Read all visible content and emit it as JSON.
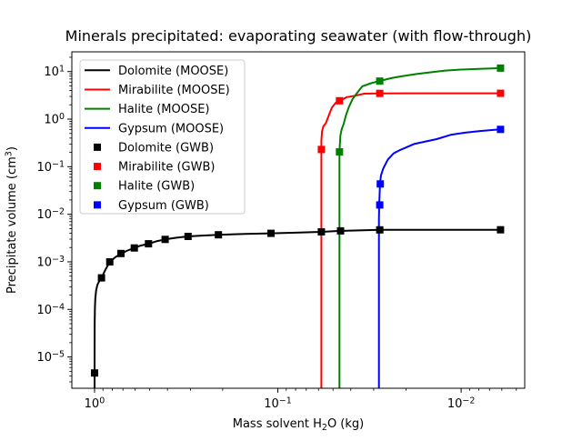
{
  "chart_data": {
    "type": "line",
    "title": "Minerals precipitated: evaporating seawater (with flow-through)",
    "legend_position": "upper left",
    "x_axis": {
      "label_pre": "Mass solvent H",
      "label_sub": "2",
      "label_post": "O (kg)",
      "scale": "log",
      "inverted": true,
      "lim": [
        1.33,
        0.0045
      ],
      "major_ticks": [
        {
          "v": 1,
          "base": "10",
          "exp": "0"
        },
        {
          "v": 0.1,
          "base": "10",
          "exp": "−1"
        },
        {
          "v": 0.01,
          "base": "10",
          "exp": "−2"
        }
      ],
      "minor_decades": [
        0,
        -1,
        -2,
        -3
      ]
    },
    "y_axis": {
      "label_pre": "Precipitate volume (cm",
      "label_sup": "3",
      "label_post": ")",
      "scale": "log",
      "lim": [
        2.2e-06,
        26
      ],
      "major_ticks": [
        {
          "v": 10,
          "base": "10",
          "exp": "1"
        },
        {
          "v": 1,
          "base": "10",
          "exp": "0"
        },
        {
          "v": 0.1,
          "base": "10",
          "exp": "−1"
        },
        {
          "v": 0.01,
          "base": "10",
          "exp": "−2"
        },
        {
          "v": 0.001,
          "base": "10",
          "exp": "−3"
        },
        {
          "v": 0.0001,
          "base": "10",
          "exp": "−4"
        },
        {
          "v": 1e-05,
          "base": "10",
          "exp": "−5"
        }
      ],
      "minor_decades": [
        1,
        0,
        -1,
        -2,
        -3,
        -4,
        -5,
        -6
      ]
    },
    "series": [
      {
        "name": "Dolomite (MOOSE)",
        "type": "line",
        "color": "#000000",
        "points": [
          [
            1.0,
            2.2e-06
          ],
          [
            1.0,
            1e-05
          ],
          [
            0.998,
            5e-05
          ],
          [
            0.995,
            0.00011
          ],
          [
            0.99,
            0.00017
          ],
          [
            0.98,
            0.00025
          ],
          [
            0.965,
            0.00033
          ],
          [
            0.94,
            0.0004
          ],
          [
            0.916,
            0.00046
          ],
          [
            0.87,
            0.0007
          ],
          [
            0.826,
            0.001
          ],
          [
            0.77,
            0.00125
          ],
          [
            0.718,
            0.0015
          ],
          [
            0.66,
            0.00173
          ],
          [
            0.607,
            0.00196
          ],
          [
            0.56,
            0.0022
          ],
          [
            0.508,
            0.0024
          ],
          [
            0.46,
            0.0027
          ],
          [
            0.412,
            0.00296
          ],
          [
            0.36,
            0.0032
          ],
          [
            0.309,
            0.00343
          ],
          [
            0.26,
            0.00357
          ],
          [
            0.211,
            0.0037
          ],
          [
            0.15,
            0.00385
          ],
          [
            0.109,
            0.00397
          ],
          [
            0.08,
            0.0041
          ],
          [
            0.0579,
            0.00427
          ],
          [
            0.0455,
            0.00447
          ],
          [
            0.0278,
            0.0047
          ],
          [
            0.015,
            0.00472
          ],
          [
            0.0061,
            0.00473
          ]
        ]
      },
      {
        "name": "Mirabilite (MOOSE)",
        "type": "line",
        "color": "#ff0000",
        "points": [
          [
            0.0579,
            2.2e-06
          ],
          [
            0.0579,
            0.35
          ],
          [
            0.0574,
            0.55
          ],
          [
            0.0565,
            0.7
          ],
          [
            0.0547,
            0.82
          ],
          [
            0.0527,
            1.2
          ],
          [
            0.0507,
            1.75
          ],
          [
            0.0484,
            2.2
          ],
          [
            0.0461,
            2.44
          ],
          [
            0.042,
            2.9
          ],
          [
            0.038,
            3.1
          ],
          [
            0.0337,
            3.43
          ],
          [
            0.0278,
            3.48
          ],
          [
            0.02,
            3.5
          ],
          [
            0.01,
            3.5
          ],
          [
            0.0061,
            3.5
          ]
        ]
      },
      {
        "name": "Halite (MOOSE)",
        "type": "line",
        "color": "#008000",
        "points": [
          [
            0.0461,
            2.2e-06
          ],
          [
            0.0461,
            0.21
          ],
          [
            0.0456,
            0.45
          ],
          [
            0.0448,
            0.62
          ],
          [
            0.0438,
            0.78
          ],
          [
            0.0425,
            1.2
          ],
          [
            0.0411,
            1.75
          ],
          [
            0.0392,
            2.6
          ],
          [
            0.0373,
            3.4
          ],
          [
            0.0346,
            4.9
          ],
          [
            0.031,
            5.7
          ],
          [
            0.0278,
            6.35
          ],
          [
            0.024,
            7.3
          ],
          [
            0.0215,
            7.9
          ],
          [
            0.0175,
            8.9
          ],
          [
            0.0145,
            9.7
          ],
          [
            0.0122,
            10.5
          ],
          [
            0.01,
            11.0
          ],
          [
            0.008,
            11.4
          ],
          [
            0.0065,
            11.7
          ],
          [
            0.0061,
            11.8
          ]
        ]
      },
      {
        "name": "Gypsum (MOOSE)",
        "type": "line",
        "color": "#0000ff",
        "points": [
          [
            0.0281,
            2.2e-06
          ],
          [
            0.0281,
            0.008
          ],
          [
            0.028,
            0.0157
          ],
          [
            0.0277,
            0.0435
          ],
          [
            0.0274,
            0.065
          ],
          [
            0.0266,
            0.092
          ],
          [
            0.0251,
            0.142
          ],
          [
            0.0234,
            0.19
          ],
          [
            0.0215,
            0.225
          ],
          [
            0.0181,
            0.3
          ],
          [
            0.0136,
            0.38
          ],
          [
            0.0114,
            0.467
          ],
          [
            0.0095,
            0.52
          ],
          [
            0.008,
            0.56
          ],
          [
            0.0068,
            0.59
          ],
          [
            0.0061,
            0.61
          ]
        ]
      },
      {
        "name": "Dolomite (GWB)",
        "type": "scatter",
        "color": "#000000",
        "points": [
          [
            1.0,
            4.6e-06
          ],
          [
            0.916,
            0.00046
          ],
          [
            0.826,
            0.001
          ],
          [
            0.718,
            0.0015
          ],
          [
            0.607,
            0.00196
          ],
          [
            0.508,
            0.0024
          ],
          [
            0.412,
            0.00296
          ],
          [
            0.309,
            0.00343
          ],
          [
            0.211,
            0.0037
          ],
          [
            0.109,
            0.00397
          ],
          [
            0.0579,
            0.00427
          ],
          [
            0.0455,
            0.00447
          ],
          [
            0.0278,
            0.0047
          ],
          [
            0.0061,
            0.00473
          ]
        ]
      },
      {
        "name": "Mirabilite (GWB)",
        "type": "scatter",
        "color": "#ff0000",
        "points": [
          [
            0.0579,
            0.23
          ],
          [
            0.0461,
            2.44
          ],
          [
            0.0278,
            3.48
          ],
          [
            0.0061,
            3.5
          ]
        ]
      },
      {
        "name": "Halite (GWB)",
        "type": "scatter",
        "color": "#008000",
        "points": [
          [
            0.0461,
            0.205
          ],
          [
            0.0278,
            6.3
          ],
          [
            0.0061,
            11.8
          ]
        ]
      },
      {
        "name": "Gypsum (GWB)",
        "type": "scatter",
        "color": "#0000ff",
        "points": [
          [
            0.0278,
            0.0157
          ],
          [
            0.0276,
            0.0435
          ],
          [
            0.0061,
            0.61
          ]
        ]
      }
    ]
  }
}
